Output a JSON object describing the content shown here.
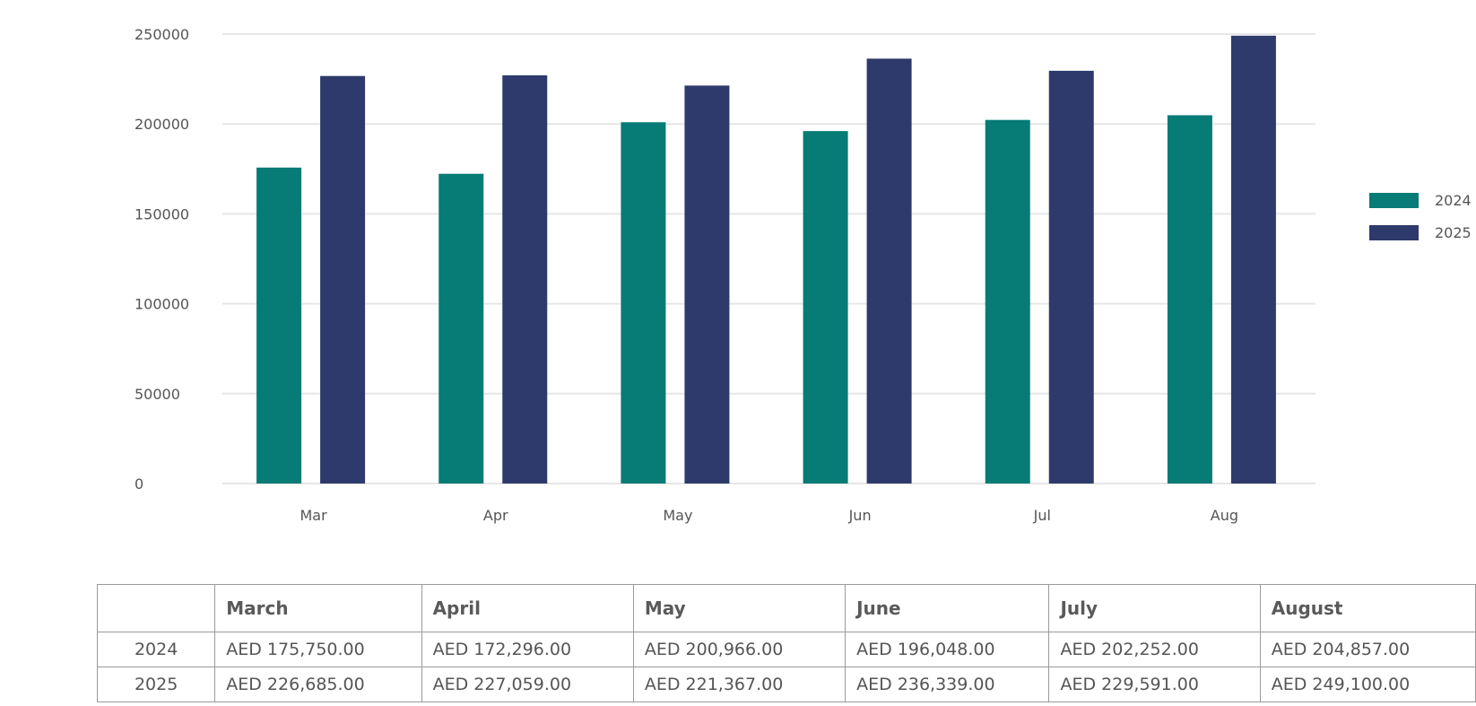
{
  "chart_data": {
    "type": "bar",
    "categories": [
      "Mar",
      "Apr",
      "May",
      "Jun",
      "Jul",
      "Aug"
    ],
    "series": [
      {
        "name": "2024",
        "color": "#077b76",
        "values": [
          175750,
          172296,
          200966,
          196048,
          202252,
          204857
        ]
      },
      {
        "name": "2025",
        "color": "#2e3a6b",
        "values": [
          226685,
          227059,
          221367,
          236339,
          229591,
          249100
        ]
      }
    ],
    "yticks": [
      "0",
      "50000",
      "100000",
      "150000",
      "200000",
      "250000"
    ],
    "ylim": [
      0,
      250000
    ],
    "grid": true,
    "legend": "right"
  },
  "table": {
    "headers": [
      "",
      "March",
      "April",
      "May",
      "June",
      "July",
      "August"
    ],
    "rows": [
      {
        "label": "2024",
        "cells": [
          "AED 175,750.00",
          "AED 172,296.00",
          "AED 200,966.00",
          "AED 196,048.00",
          "AED 202,252.00",
          "AED 204,857.00"
        ]
      },
      {
        "label": "2025",
        "cells": [
          "AED 226,685.00",
          "AED 227,059.00",
          "AED 221,367.00",
          "AED 236,339.00",
          "AED 229,591.00",
          "AED 249,100.00"
        ]
      }
    ]
  }
}
